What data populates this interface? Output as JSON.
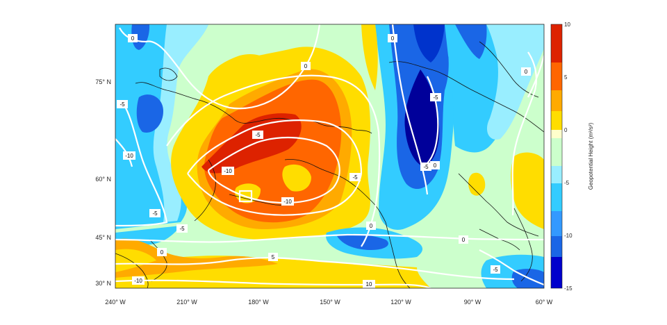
{
  "map": {
    "x_ticks": [
      "240° W",
      "210° W",
      "180° W",
      "150° W",
      "120° W",
      "90° W",
      "60° W"
    ],
    "y_ticks": [
      "75° N",
      "60° N",
      "45° N",
      "30° N"
    ]
  },
  "colorbar": {
    "label": "Geopotential Height (m²/s²)",
    "ticks": [
      "10",
      "5",
      "0",
      "-5",
      "-10",
      "-15"
    ],
    "range": [
      -15,
      10
    ],
    "colors": [
      "#00009a",
      "#0033cc",
      "#1a66e6",
      "#3399ff",
      "#33ccff",
      "#99eeff",
      "#ccffcc",
      "#ffffcc",
      "#ffdd00",
      "#ffaa00",
      "#ff6600",
      "#dd2200",
      "#aa0000"
    ]
  },
  "contour_labels": [
    {
      "id": "c1",
      "text": "0"
    },
    {
      "id": "c2",
      "text": "0"
    },
    {
      "id": "c3",
      "text": "0"
    },
    {
      "id": "c4",
      "text": "0"
    },
    {
      "id": "c5",
      "text": "-5"
    },
    {
      "id": "c6",
      "text": "-10"
    },
    {
      "id": "c7",
      "text": "-5"
    },
    {
      "id": "c8",
      "text": "-10"
    },
    {
      "id": "c9",
      "text": "-5"
    },
    {
      "id": "c10",
      "text": "-10"
    },
    {
      "id": "c11",
      "text": "-5"
    },
    {
      "id": "c12",
      "text": "-5"
    },
    {
      "id": "c13",
      "text": "0"
    },
    {
      "id": "c14",
      "text": "0"
    },
    {
      "id": "c15",
      "text": "5"
    },
    {
      "id": "c16",
      "text": "-10"
    },
    {
      "id": "c17",
      "text": "10"
    },
    {
      "id": "c18",
      "text": "0"
    },
    {
      "id": "c19",
      "text": "-5"
    },
    {
      "id": "c20",
      "text": "0"
    },
    {
      "id": "c21",
      "text": "-5"
    },
    {
      "id": "c22",
      "text": "-5"
    }
  ]
}
